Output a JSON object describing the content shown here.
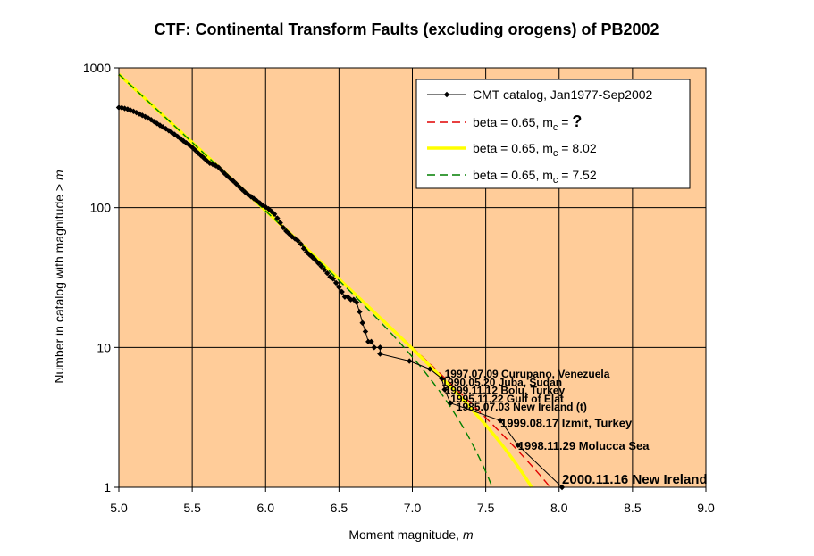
{
  "chart_data": {
    "type": "line",
    "title": "CTF: Continental Transform Faults (excluding orogens) of PB2002",
    "xlabel_text": "Moment magnitude, ",
    "xlabel_var": "m",
    "ylabel_text": "Number in catalog with magnitude  >  ",
    "ylabel_var": "m",
    "xlim": [
      5.0,
      9.0
    ],
    "ylim": [
      1,
      1000
    ],
    "yscale": "log",
    "grid": true,
    "legend_position": "top-right",
    "background": "#FFCC99",
    "x_ticks": [
      "5.0",
      "5.5",
      "6.0",
      "6.5",
      "7.0",
      "7.5",
      "8.0",
      "8.5",
      "9.0"
    ],
    "y_ticks": [
      {
        "value": 1,
        "label": "1"
      },
      {
        "value": 10,
        "label": "10"
      },
      {
        "value": 100,
        "label": "100"
      },
      {
        "value": 1000,
        "label": "1000"
      }
    ],
    "legend": [
      {
        "id": "cmt",
        "text": "CMT catalog, Jan1977-Sep2002"
      },
      {
        "id": "red",
        "text_pre": "beta = 0.65, m",
        "sub": "c",
        "text_post": " = ",
        "big": "?"
      },
      {
        "id": "yellow",
        "text_pre": "beta = 0.65, m",
        "sub": "c",
        "text_post": " = 8.02",
        "big": ""
      },
      {
        "id": "green",
        "text_pre": "beta = 0.65, m",
        "sub": "c",
        "text_post": " = 7.52",
        "big": ""
      }
    ],
    "series": [
      {
        "key": "cmt",
        "name": "CMT catalog, Jan1977-Sep2002",
        "color": "#000000",
        "style": "line-markers",
        "points": [
          [
            5.0,
            520
          ],
          [
            5.02,
            518
          ],
          [
            5.04,
            512
          ],
          [
            5.06,
            505
          ],
          [
            5.08,
            497
          ],
          [
            5.1,
            488
          ],
          [
            5.12,
            478
          ],
          [
            5.14,
            468
          ],
          [
            5.16,
            457
          ],
          [
            5.18,
            447
          ],
          [
            5.2,
            437
          ],
          [
            5.22,
            425
          ],
          [
            5.24,
            412
          ],
          [
            5.26,
            400
          ],
          [
            5.28,
            388
          ],
          [
            5.3,
            377
          ],
          [
            5.32,
            367
          ],
          [
            5.34,
            356
          ],
          [
            5.36,
            345
          ],
          [
            5.38,
            334
          ],
          [
            5.4,
            323
          ],
          [
            5.42,
            311
          ],
          [
            5.44,
            300
          ],
          [
            5.46,
            290
          ],
          [
            5.48,
            280
          ],
          [
            5.5,
            270
          ],
          [
            5.52,
            258
          ],
          [
            5.54,
            246
          ],
          [
            5.56,
            236
          ],
          [
            5.58,
            226
          ],
          [
            5.6,
            216
          ],
          [
            5.62,
            208
          ],
          [
            5.64,
            204
          ],
          [
            5.66,
            200
          ],
          [
            5.68,
            194
          ],
          [
            5.7,
            185
          ],
          [
            5.72,
            176
          ],
          [
            5.74,
            168
          ],
          [
            5.76,
            161
          ],
          [
            5.78,
            155
          ],
          [
            5.8,
            148
          ],
          [
            5.82,
            141
          ],
          [
            5.84,
            135
          ],
          [
            5.86,
            129
          ],
          [
            5.88,
            124
          ],
          [
            5.9,
            120
          ],
          [
            5.92,
            116
          ],
          [
            5.94,
            112
          ],
          [
            5.96,
            108
          ],
          [
            5.98,
            104
          ],
          [
            6.0,
            101
          ],
          [
            6.02,
            98
          ],
          [
            6.04,
            94
          ],
          [
            6.06,
            90
          ],
          [
            6.08,
            84
          ],
          [
            6.1,
            78
          ],
          [
            6.12,
            72
          ],
          [
            6.14,
            68
          ],
          [
            6.16,
            65
          ],
          [
            6.18,
            62
          ],
          [
            6.2,
            60
          ],
          [
            6.22,
            58
          ],
          [
            6.24,
            55
          ],
          [
            6.26,
            51
          ],
          [
            6.28,
            48
          ],
          [
            6.3,
            46
          ],
          [
            6.32,
            44
          ],
          [
            6.34,
            42
          ],
          [
            6.36,
            40
          ],
          [
            6.38,
            38
          ],
          [
            6.4,
            36
          ],
          [
            6.42,
            34
          ],
          [
            6.44,
            32
          ],
          [
            6.46,
            31
          ],
          [
            6.48,
            29
          ],
          [
            6.5,
            27
          ],
          [
            6.52,
            25
          ],
          [
            6.54,
            23
          ],
          [
            6.56,
            23
          ],
          [
            6.58,
            22
          ],
          [
            6.6,
            22
          ],
          [
            6.62,
            21
          ],
          [
            6.64,
            18
          ],
          [
            6.66,
            15
          ],
          [
            6.68,
            13
          ],
          [
            6.7,
            11
          ],
          [
            6.72,
            11
          ],
          [
            6.74,
            10
          ],
          [
            6.78,
            10
          ],
          [
            6.78,
            9
          ],
          [
            6.98,
            8
          ],
          [
            7.12,
            7
          ],
          [
            7.2,
            6
          ],
          [
            7.22,
            5
          ],
          [
            7.26,
            4
          ],
          [
            7.6,
            3
          ],
          [
            7.72,
            2
          ],
          [
            8.02,
            1
          ]
        ]
      },
      {
        "key": "red",
        "name": "beta = 0.65, mc = ?",
        "color": "#E00000",
        "style": "dashed",
        "model": {
          "beta": 0.65,
          "mc": 8.4
        }
      },
      {
        "key": "yellow",
        "name": "beta = 0.65, mc = 8.02",
        "color": "#FFFF00",
        "style": "solid-thick",
        "model": {
          "beta": 0.65,
          "mc": 8.02
        }
      },
      {
        "key": "green",
        "name": "beta = 0.65, mc = 7.52",
        "color": "#007F00",
        "style": "dashed",
        "model": {
          "beta": 0.65,
          "mc": 7.52
        }
      }
    ],
    "model_reference": {
      "m0": 5.0,
      "n0": 900
    },
    "annotations": [
      {
        "text": "1997.07.09 Curupano, Venezuela",
        "x": 7.22,
        "y": 6.1,
        "size": 12
      },
      {
        "text": "1990.05.20 Juba, Sudan",
        "x": 7.2,
        "y": 5.3,
        "size": 12
      },
      {
        "text": "1999.11.12 Bolu, Turkey",
        "x": 7.22,
        "y": 4.65,
        "size": 12
      },
      {
        "text": "1995.11.22 Gulf of Elat",
        "x": 7.26,
        "y": 4.05,
        "size": 12
      },
      {
        "text": "1985.07.03 New Ireland (t)",
        "x": 7.3,
        "y": 3.55,
        "size": 12
      },
      {
        "text": "1999.08.17 Izmit, Turkey",
        "x": 7.6,
        "y": 2.7,
        "size": 13
      },
      {
        "text": "1998.11.29 Molucca Sea",
        "x": 7.72,
        "y": 1.85,
        "size": 13
      },
      {
        "text": "2000.11.16 New Ireland",
        "x": 8.02,
        "y": 1.06,
        "size": 15
      }
    ]
  }
}
